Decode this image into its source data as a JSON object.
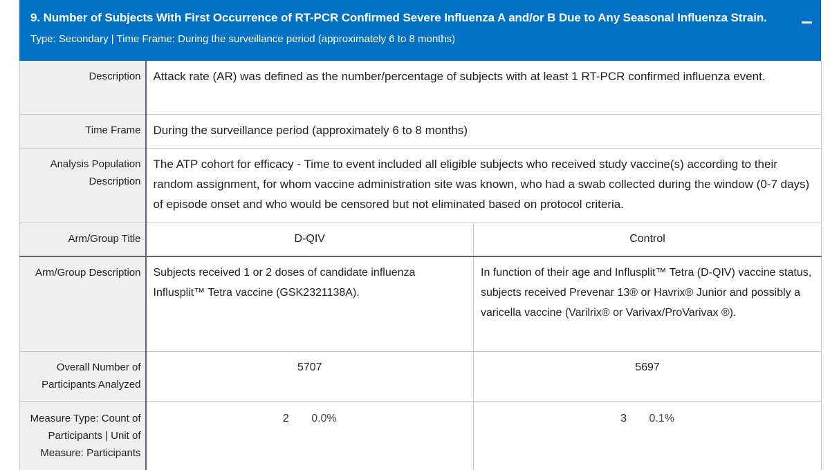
{
  "header": {
    "title": "9. Number of Subjects With First Occurrence of RT-PCR Confirmed Severe Influenza A and/or B Due to Any Seasonal Influenza Strain.",
    "subtitle": "Type: Secondary | Time Frame: During the surveillance period (approximately 6 to 8 months)",
    "collapse_icon": "minus-icon"
  },
  "rows": {
    "description": {
      "label": "Description",
      "value": "Attack rate (AR) was defined as the number/percentage of subjects with at least 1 RT-PCR confirmed influenza event."
    },
    "time_frame": {
      "label": "Time Frame",
      "value": "During the surveillance period (approximately 6 to 8 months)"
    },
    "analysis_population": {
      "label": "Analysis Population Description",
      "value": "The ATP cohort for efficacy - Time to event included all eligible subjects who received study vaccine(s) according to their random assignment, for whom vaccine administration site was known, who had a swab collected during the window (0-7 days) of episode onset and who would be censored but not eliminated based on protocol criteria."
    },
    "arm_group_title": {
      "label": "Arm/Group Title",
      "arms": [
        "D-QIV",
        "Control"
      ]
    },
    "arm_group_description": {
      "label": "Arm/Group Description",
      "arms": [
        "Subjects received 1 or 2 doses of candidate influenza Influsplit™ Tetra vaccine (GSK2321138A).",
        "In function of their age and Influsplit™ Tetra (D-QIV) vaccine status, subjects received Prevenar 13® or Havrix® Junior and possibly a varicella vaccine (Varilrix® or Varivax/ProVarivax ®)."
      ]
    },
    "overall_number": {
      "label": "Overall Number of Participants Analyzed",
      "values": [
        "5707",
        "5697"
      ]
    },
    "measure_type": {
      "label": "Measure Type: Count of Participants | Unit of Measure: Participants",
      "counts": [
        "2",
        "3"
      ],
      "percents": [
        "0.0%",
        "0.1%"
      ]
    }
  }
}
